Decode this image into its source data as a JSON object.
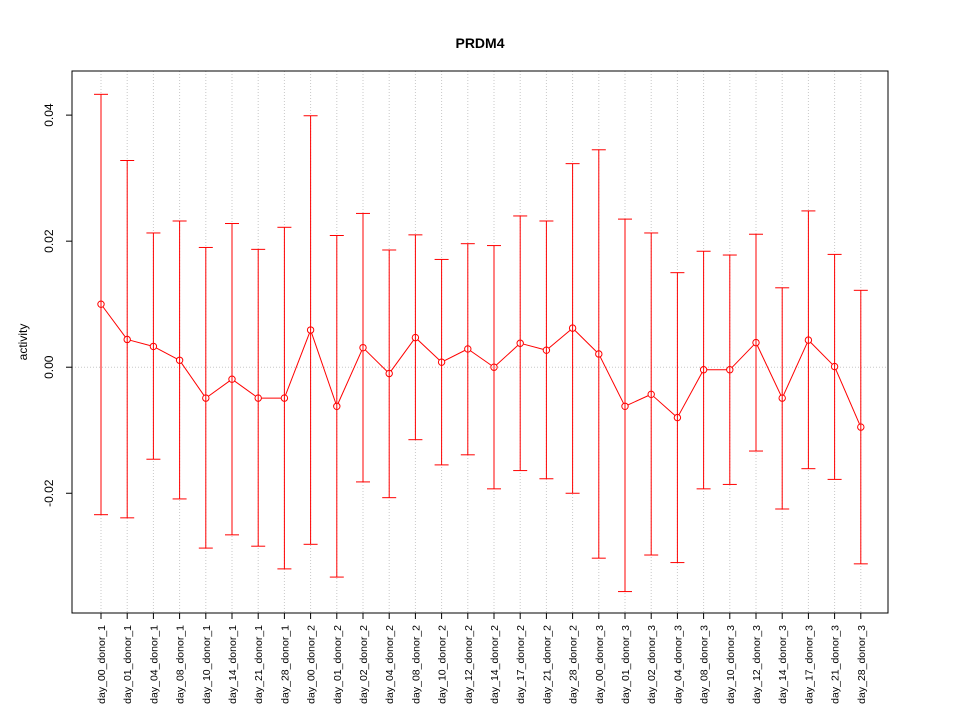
{
  "chart_data": {
    "type": "line",
    "title": "PRDM4",
    "xlabel": "",
    "ylabel": "activity",
    "ylim": [
      -0.039,
      0.047
    ],
    "yticks": [
      -0.02,
      0.0,
      0.02,
      0.04
    ],
    "ytick_labels": [
      "-0.02",
      "0.00",
      "0.02",
      "0.04"
    ],
    "grid": true,
    "colors": {
      "series": "#ff0000",
      "grid": "#c8c8c8",
      "axis": "#000000"
    },
    "categories": [
      "day_00_donor_1",
      "day_01_donor_1",
      "day_04_donor_1",
      "day_08_donor_1",
      "day_10_donor_1",
      "day_14_donor_1",
      "day_21_donor_1",
      "day_28_donor_1",
      "day_00_donor_2",
      "day_01_donor_2",
      "day_02_donor_2",
      "day_04_donor_2",
      "day_08_donor_2",
      "day_10_donor_2",
      "day_12_donor_2",
      "day_14_donor_2",
      "day_17_donor_2",
      "day_21_donor_2",
      "day_28_donor_2",
      "day_00_donor_3",
      "day_01_donor_3",
      "day_02_donor_3",
      "day_04_donor_3",
      "day_08_donor_3",
      "day_10_donor_3",
      "day_12_donor_3",
      "day_14_donor_3",
      "day_17_donor_3",
      "day_21_donor_3",
      "day_28_donor_3"
    ],
    "values": [
      0.01,
      0.0044,
      0.0033,
      0.0011,
      -0.0049,
      -0.0019,
      -0.0049,
      -0.0049,
      0.0059,
      -0.0062,
      0.0031,
      -0.001,
      0.0047,
      0.0008,
      0.0029,
      0.0,
      0.0038,
      0.0027,
      0.0062,
      0.0021,
      -0.0062,
      -0.0043,
      -0.008,
      -0.0004,
      -0.0004,
      0.0039,
      -0.0049,
      0.0043,
      0.0001,
      -0.0095
    ],
    "upper": [
      0.0433,
      0.0328,
      0.0213,
      0.0232,
      0.019,
      0.0228,
      0.0187,
      0.0222,
      0.0399,
      0.0209,
      0.0244,
      0.0186,
      0.021,
      0.0171,
      0.0196,
      0.0193,
      0.024,
      0.0232,
      0.0323,
      0.0345,
      0.0235,
      0.0213,
      0.015,
      0.0184,
      0.0178,
      0.0211,
      0.0126,
      0.0248,
      0.0179,
      0.0122
    ],
    "lower": [
      -0.0234,
      -0.0239,
      -0.0146,
      -0.0209,
      -0.0287,
      -0.0266,
      -0.0284,
      -0.032,
      -0.0281,
      -0.0333,
      -0.0182,
      -0.0207,
      -0.0115,
      -0.0155,
      -0.0139,
      -0.0193,
      -0.0164,
      -0.0177,
      -0.02,
      -0.0303,
      -0.0356,
      -0.0298,
      -0.031,
      -0.0193,
      -0.0186,
      -0.0133,
      -0.0225,
      -0.0161,
      -0.0178,
      -0.0312
    ]
  }
}
